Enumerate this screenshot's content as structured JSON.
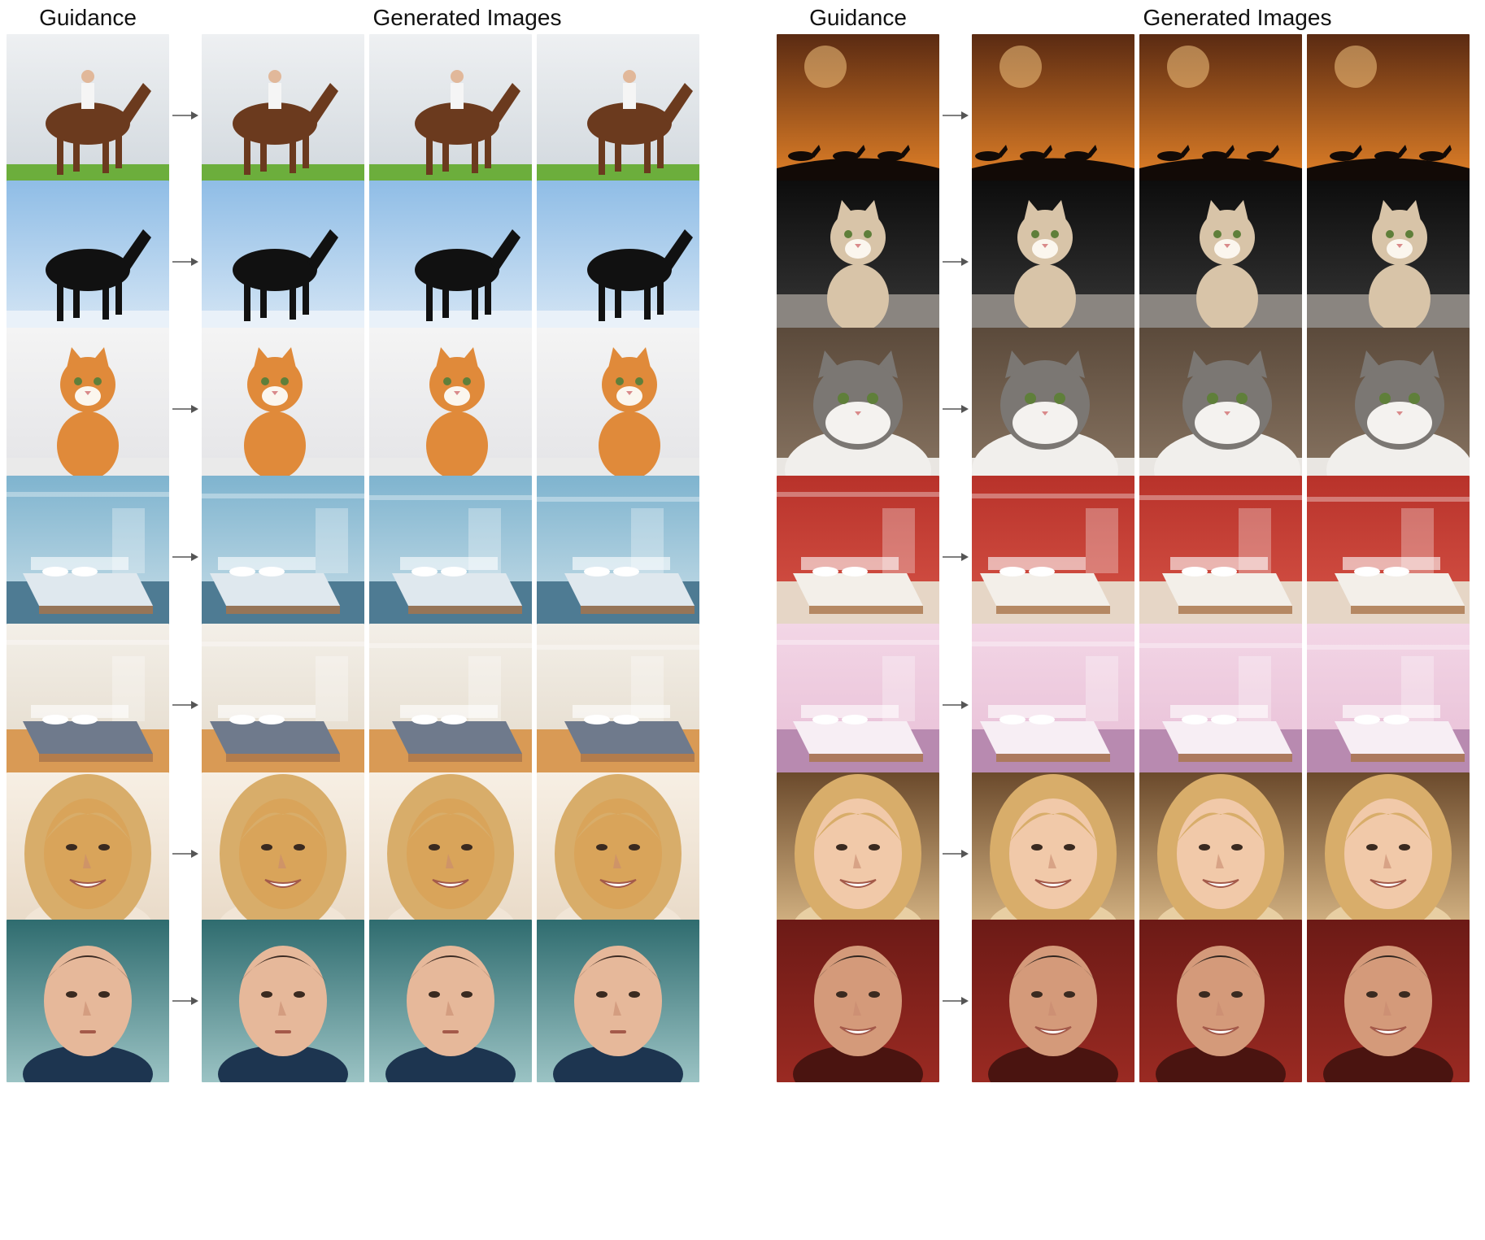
{
  "headers": {
    "left": {
      "guidance": "Guidance",
      "generated": "Generated Images"
    },
    "right": {
      "guidance": "Guidance",
      "generated": "Generated Images"
    }
  },
  "panels": [
    {
      "side": "left",
      "rows": [
        {
          "subject": "horse-rider",
          "bg": [
            "#eef0f2",
            "#cfd6dc"
          ],
          "ground": "#6cae3c",
          "fg": "#6b3a1e"
        },
        {
          "subject": "black-horse",
          "bg": [
            "#8fbde6",
            "#dbe9f6"
          ],
          "ground": "#e9f1f9",
          "fg": "#111111"
        },
        {
          "subject": "orange-cat",
          "bg": [
            "#f4f4f4",
            "#e3e3e6"
          ],
          "ground": "#eaeaea",
          "fg": "#e08a3a"
        },
        {
          "subject": "blue-bedroom",
          "bg": [
            "#7fb4cf",
            "#cfe2ea"
          ],
          "ground": "#4e7b93",
          "fg": "#dfe8ee"
        },
        {
          "subject": "wood-bedroom",
          "bg": [
            "#f3efe8",
            "#e2d8c8"
          ],
          "ground": "#d99a55",
          "fg": "#6f7a8c"
        },
        {
          "subject": "blonde-woman",
          "bg": [
            "#f7efe4",
            "#e8d9c6"
          ],
          "ground": "#f1e5d6",
          "fg": "#d9a45a"
        },
        {
          "subject": "young-boy",
          "bg": [
            "#2f6c6f",
            "#9bc3c4"
          ],
          "ground": "#1d3550",
          "fg": "#e6b89a"
        }
      ]
    },
    {
      "side": "right",
      "rows": [
        {
          "subject": "sunset-horses",
          "bg": [
            "#5a2a12",
            "#f08a2a"
          ],
          "ground": "#120a06",
          "fg": "#120a06"
        },
        {
          "subject": "tabby-kitten",
          "bg": [
            "#0d0d0d",
            "#3a3a3a"
          ],
          "ground": "#8a8580",
          "fg": "#d8c4a8"
        },
        {
          "subject": "fluffy-cat",
          "bg": [
            "#5b4a3b",
            "#8b7764"
          ],
          "ground": "#e9e6e2",
          "fg": "#7b7773"
        },
        {
          "subject": "red-bedroom",
          "bg": [
            "#b8322a",
            "#d9574a"
          ],
          "ground": "#e6d6c6",
          "fg": "#f3efe9"
        },
        {
          "subject": "pink-bedroom",
          "bg": [
            "#f3d6e6",
            "#e6bcd4"
          ],
          "ground": "#b88ab0",
          "fg": "#f7eef4"
        },
        {
          "subject": "smiling-girl",
          "bg": [
            "#6b4a2c",
            "#d9b887"
          ],
          "ground": "#e8cfa3",
          "fg": "#f1c9a9"
        },
        {
          "subject": "smiling-man",
          "bg": [
            "#6c1a16",
            "#9a2a22"
          ],
          "ground": "#4a1410",
          "fg": "#d49a7a"
        }
      ]
    }
  ]
}
